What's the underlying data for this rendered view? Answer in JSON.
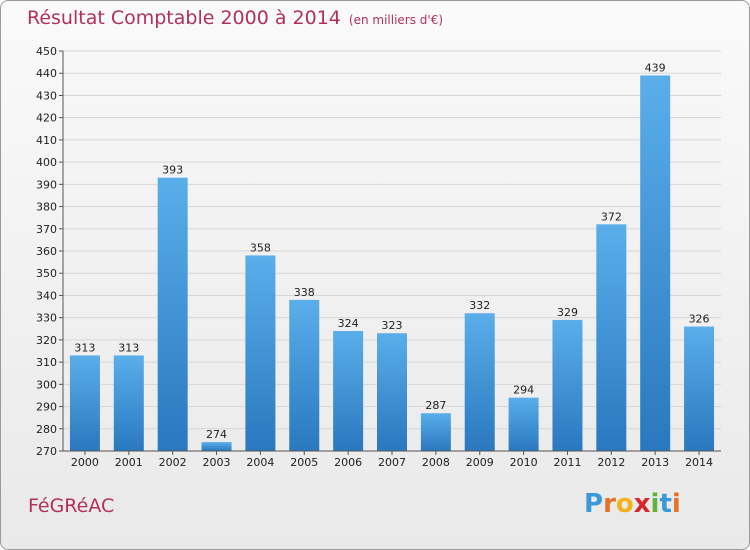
{
  "header": {
    "title": "Résultat Comptable 2000 à 2014",
    "subtitle": "(en milliers d'€)"
  },
  "footer": {
    "commune": "FéGRéAC",
    "brand_letters": [
      "P",
      "r",
      "o",
      "x",
      "i",
      "t",
      "i"
    ],
    "brand_colors": [
      "#3a9ad9",
      "#e8712a",
      "#f2b21c",
      "#d8262b",
      "#5fb23a",
      "#3a9ad9",
      "#e8712a"
    ]
  },
  "chart_data": {
    "type": "bar",
    "title": "Résultat Comptable 2000 à 2014",
    "subtitle": "(en milliers d'€)",
    "xlabel": "",
    "ylabel": "",
    "categories": [
      "2000",
      "2001",
      "2002",
      "2003",
      "2004",
      "2005",
      "2006",
      "2007",
      "2008",
      "2009",
      "2010",
      "2011",
      "2012",
      "2013",
      "2014"
    ],
    "values": [
      313,
      313,
      393,
      274,
      358,
      338,
      324,
      323,
      287,
      332,
      294,
      329,
      372,
      439,
      326
    ],
    "ylim": [
      270,
      450
    ],
    "yticks": [
      270,
      280,
      290,
      300,
      310,
      320,
      330,
      340,
      350,
      360,
      370,
      380,
      390,
      400,
      410,
      420,
      430,
      440,
      450
    ],
    "grid": true,
    "bar_color": "#3a8fd4",
    "legend": "none"
  }
}
